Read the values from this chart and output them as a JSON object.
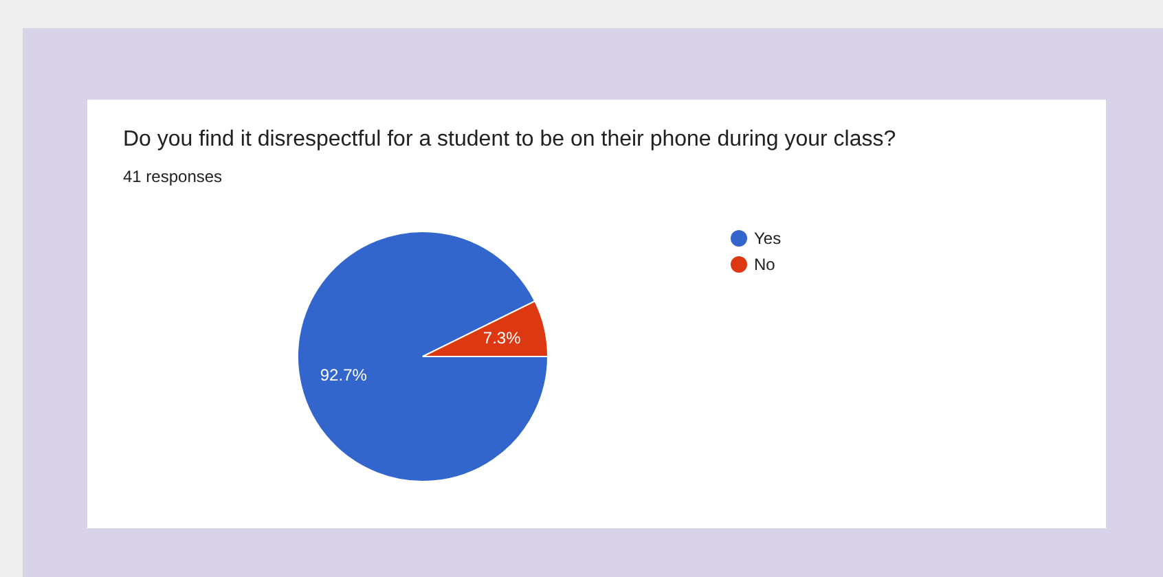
{
  "chart_data": {
    "type": "pie",
    "title": "Do you find it disrespectful for a student to be on their phone during your class?",
    "subtitle": "41 responses",
    "categories": [
      "Yes",
      "No"
    ],
    "values": [
      92.7,
      7.3
    ],
    "value_labels": [
      "92.7%",
      "7.3%"
    ],
    "colors": [
      "#3366cc",
      "#dc3912"
    ],
    "data_labels": true,
    "legend": "right"
  }
}
